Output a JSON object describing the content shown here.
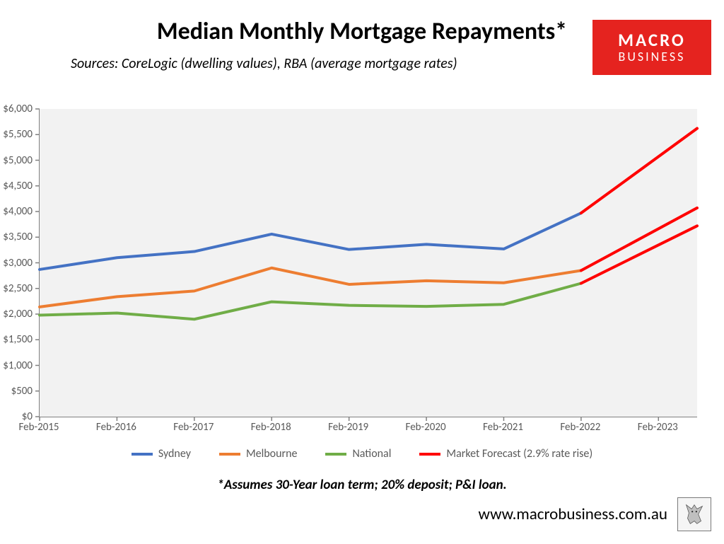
{
  "title": "Median Monthly Mortgage Repayments*",
  "subtitle": "Sources: CoreLogic (dwelling values), RBA (average mortgage rates)",
  "brand": {
    "line1": "MACRO",
    "line2": "BUSINESS",
    "bg": "#e5231f",
    "fg": "#ffffff"
  },
  "footnote": "*Assumes 30-Year loan term; 20% deposit; P&I loan.",
  "website": "www.macrobusiness.com.au",
  "chart": {
    "type": "line",
    "plot_bg": "#f2f2f2",
    "page_bg": "#ffffff",
    "axis_color": "#808080",
    "tick_label_color": "#595959",
    "tick_fontsize": 15,
    "title_fontsize": 34,
    "subtitle_fontsize": 20,
    "line_width": 4,
    "y": {
      "min": 0,
      "max": 6000,
      "step": 500,
      "labels": [
        "$0",
        "$500",
        "$1,000",
        "$1,500",
        "$2,000",
        "$2,500",
        "$3,000",
        "$3,500",
        "$4,000",
        "$4,500",
        "$5,000",
        "$5,500",
        "$6,000"
      ]
    },
    "x": {
      "categories": [
        "Feb-2015",
        "Feb-2016",
        "Feb-2017",
        "Feb-2018",
        "Feb-2019",
        "Feb-2020",
        "Feb-2021",
        "Feb-2022",
        "Feb-2023"
      ],
      "forecast_extra_step": 0.5
    },
    "series": {
      "sydney": {
        "label": "Sydney",
        "color": "#4472c4",
        "values": [
          2870,
          3100,
          3220,
          3560,
          3260,
          3360,
          3270,
          3970
        ]
      },
      "melbourne": {
        "label": "Melbourne",
        "color": "#ed7d31",
        "values": [
          2140,
          2340,
          2450,
          2900,
          2580,
          2650,
          2610,
          2850
        ]
      },
      "national": {
        "label": "National",
        "color": "#70ad47",
        "values": [
          1980,
          2020,
          1900,
          2240,
          2170,
          2150,
          2190,
          2600
        ]
      },
      "forecast": {
        "label": "Market Forecast (2.9% rate rise)",
        "color": "#ff0000",
        "segments": [
          {
            "from_index": 7,
            "from_value": 3970,
            "to_value": 5620
          },
          {
            "from_index": 7,
            "from_value": 2850,
            "to_value": 4070
          },
          {
            "from_index": 7,
            "from_value": 2600,
            "to_value": 3720
          }
        ]
      }
    },
    "legend_items": [
      {
        "label": "Sydney",
        "color": "#4472c4"
      },
      {
        "label": "Melbourne",
        "color": "#ed7d31"
      },
      {
        "label": "National",
        "color": "#70ad47"
      },
      {
        "label": "Market Forecast (2.9% rate rise)",
        "color": "#ff0000"
      }
    ]
  }
}
